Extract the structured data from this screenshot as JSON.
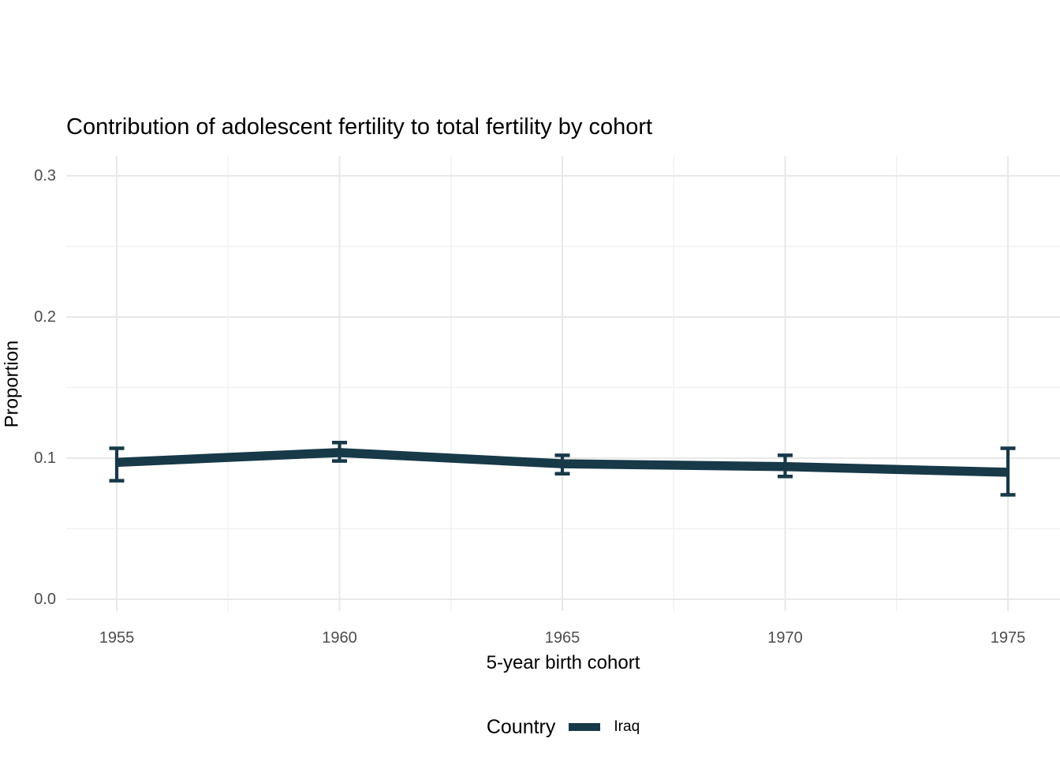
{
  "colors": {
    "background": "#ffffff",
    "text": "#000000",
    "tick_text": "#4d4d4d",
    "grid_major": "#e8e8e8",
    "grid_minor": "#f1f1f1",
    "series_iraq": "#173948"
  },
  "chart_data": {
    "type": "line",
    "title": "Contribution of adolescent fertility to total fertility by cohort",
    "xlabel": "5-year birth cohort",
    "ylabel": "Proportion",
    "x": [
      1955,
      1960,
      1965,
      1970,
      1975
    ],
    "x_tick_labels": [
      "1955",
      "1960",
      "1965",
      "1970",
      "1975"
    ],
    "y_tick_values": [
      0.0,
      0.1,
      0.2,
      0.3
    ],
    "y_tick_labels": [
      "0.0",
      "0.1",
      "0.2",
      "0.3"
    ],
    "xlim": [
      1953.9,
      1976.2
    ],
    "ylim": [
      -0.008,
      0.314
    ],
    "grid": {
      "on": true,
      "minor_x": [
        1957.5,
        1962.5,
        1967.5,
        1972.5
      ],
      "minor_y": [
        0.05,
        0.15,
        0.25
      ]
    },
    "series": [
      {
        "name": "Iraq",
        "color": "#173948",
        "values": [
          0.097,
          0.104,
          0.096,
          0.094,
          0.09
        ],
        "ymin": [
          0.084,
          0.098,
          0.089,
          0.087,
          0.074
        ],
        "ymax": [
          0.107,
          0.111,
          0.102,
          0.102,
          0.107
        ],
        "error_bars": true
      }
    ],
    "legend": {
      "title": "Country",
      "position": "bottom",
      "entries": [
        {
          "label": "Iraq",
          "color": "#173948"
        }
      ]
    }
  }
}
